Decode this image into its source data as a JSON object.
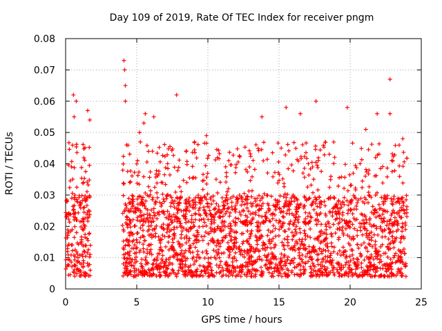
{
  "chart_data": {
    "type": "scatter",
    "title": "Day 109 of 2019, Rate Of TEC Index for receiver pngm",
    "xlabel": "GPS time / hours",
    "ylabel": "ROTI / TECUs",
    "xlim": [
      0,
      25
    ],
    "ylim": [
      0,
      0.08
    ],
    "xticks": [
      0,
      5,
      10,
      15,
      20,
      25
    ],
    "yticks": [
      0,
      0.01,
      0.02,
      0.03,
      0.04,
      0.05,
      0.06,
      0.07,
      0.08
    ],
    "xtick_labels": [
      "0",
      "5",
      "10",
      "15",
      "20",
      "25"
    ],
    "ytick_labels": [
      "0",
      "0.01",
      "0.02",
      "0.03",
      "0.04",
      "0.05",
      "0.06",
      "0.07",
      "0.08"
    ],
    "grid": true,
    "marker": "+",
    "marker_color": "#ff0000",
    "series": [
      {
        "name": "ROTI",
        "segments": [
          [
            0.0,
            1.75
          ],
          [
            4.0,
            24.0
          ]
        ],
        "typical_range": [
          0.004,
          0.03
        ],
        "notable_points": [
          {
            "x": 0.55,
            "y": 0.062
          },
          {
            "x": 0.75,
            "y": 0.06
          },
          {
            "x": 0.6,
            "y": 0.055
          },
          {
            "x": 1.55,
            "y": 0.057
          },
          {
            "x": 1.7,
            "y": 0.054
          },
          {
            "x": 4.1,
            "y": 0.073
          },
          {
            "x": 4.15,
            "y": 0.07
          },
          {
            "x": 4.2,
            "y": 0.065
          },
          {
            "x": 4.2,
            "y": 0.06
          },
          {
            "x": 5.2,
            "y": 0.05
          },
          {
            "x": 5.5,
            "y": 0.053
          },
          {
            "x": 5.6,
            "y": 0.056
          },
          {
            "x": 6.2,
            "y": 0.055
          },
          {
            "x": 7.8,
            "y": 0.062
          },
          {
            "x": 9.9,
            "y": 0.049
          },
          {
            "x": 13.8,
            "y": 0.055
          },
          {
            "x": 15.5,
            "y": 0.058
          },
          {
            "x": 16.5,
            "y": 0.056
          },
          {
            "x": 17.6,
            "y": 0.06
          },
          {
            "x": 19.8,
            "y": 0.058
          },
          {
            "x": 21.1,
            "y": 0.051
          },
          {
            "x": 21.9,
            "y": 0.056
          },
          {
            "x": 22.8,
            "y": 0.067
          },
          {
            "x": 22.8,
            "y": 0.056
          },
          {
            "x": 23.7,
            "y": 0.048
          }
        ]
      }
    ]
  }
}
